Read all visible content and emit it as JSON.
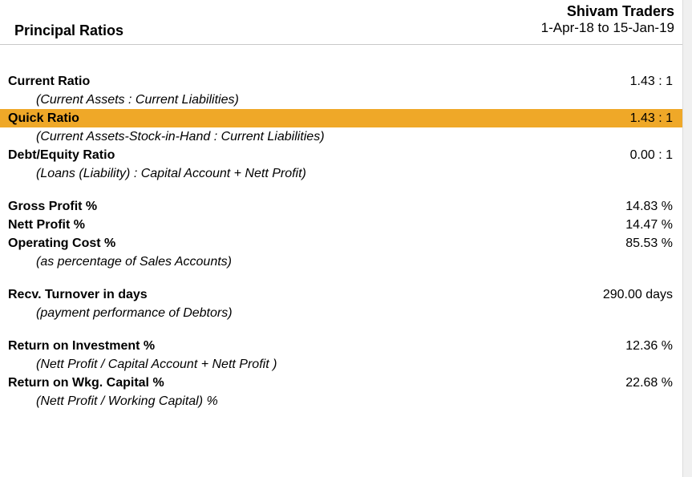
{
  "header": {
    "title": "Principal Ratios",
    "company": "Shivam Traders",
    "period": "1-Apr-18 to 15-Jan-19"
  },
  "rows": [
    {
      "label": "Current Ratio",
      "value": "1.43 : 1",
      "desc": "(Current Assets : Current Liabilities)"
    },
    {
      "label": "Quick Ratio",
      "value": "1.43 : 1",
      "desc": "(Current Assets-Stock-in-Hand : Current Liabilities)",
      "highlight": true
    },
    {
      "label": "Debt/Equity Ratio",
      "value": "0.00 : 1",
      "desc": "(Loans (Liability) : Capital Account + Nett Profit)"
    }
  ],
  "profit": {
    "gross": {
      "label": "Gross Profit %",
      "value": "14.83 %"
    },
    "nett": {
      "label": "Nett Profit %",
      "value": "14.47 %"
    },
    "op": {
      "label": "Operating Cost %",
      "value": "85.53 %"
    },
    "desc": "(as percentage of Sales Accounts)"
  },
  "recv": {
    "label": "Recv. Turnover in days",
    "value": "290.00 days",
    "desc": "(payment performance of Debtors)"
  },
  "roi": {
    "label": "Return on Investment %",
    "value": "12.36 %",
    "desc": "(Nett Profit / Capital Account + Nett Profit )"
  },
  "rowc": {
    "label": "Return on Wkg. Capital %",
    "value": "22.68 %",
    "desc": "(Nett Profit / Working Capital) %"
  },
  "colors": {
    "highlight": "#efa828",
    "border": "#c8c8c8",
    "text": "#000000",
    "background": "#ffffff"
  }
}
